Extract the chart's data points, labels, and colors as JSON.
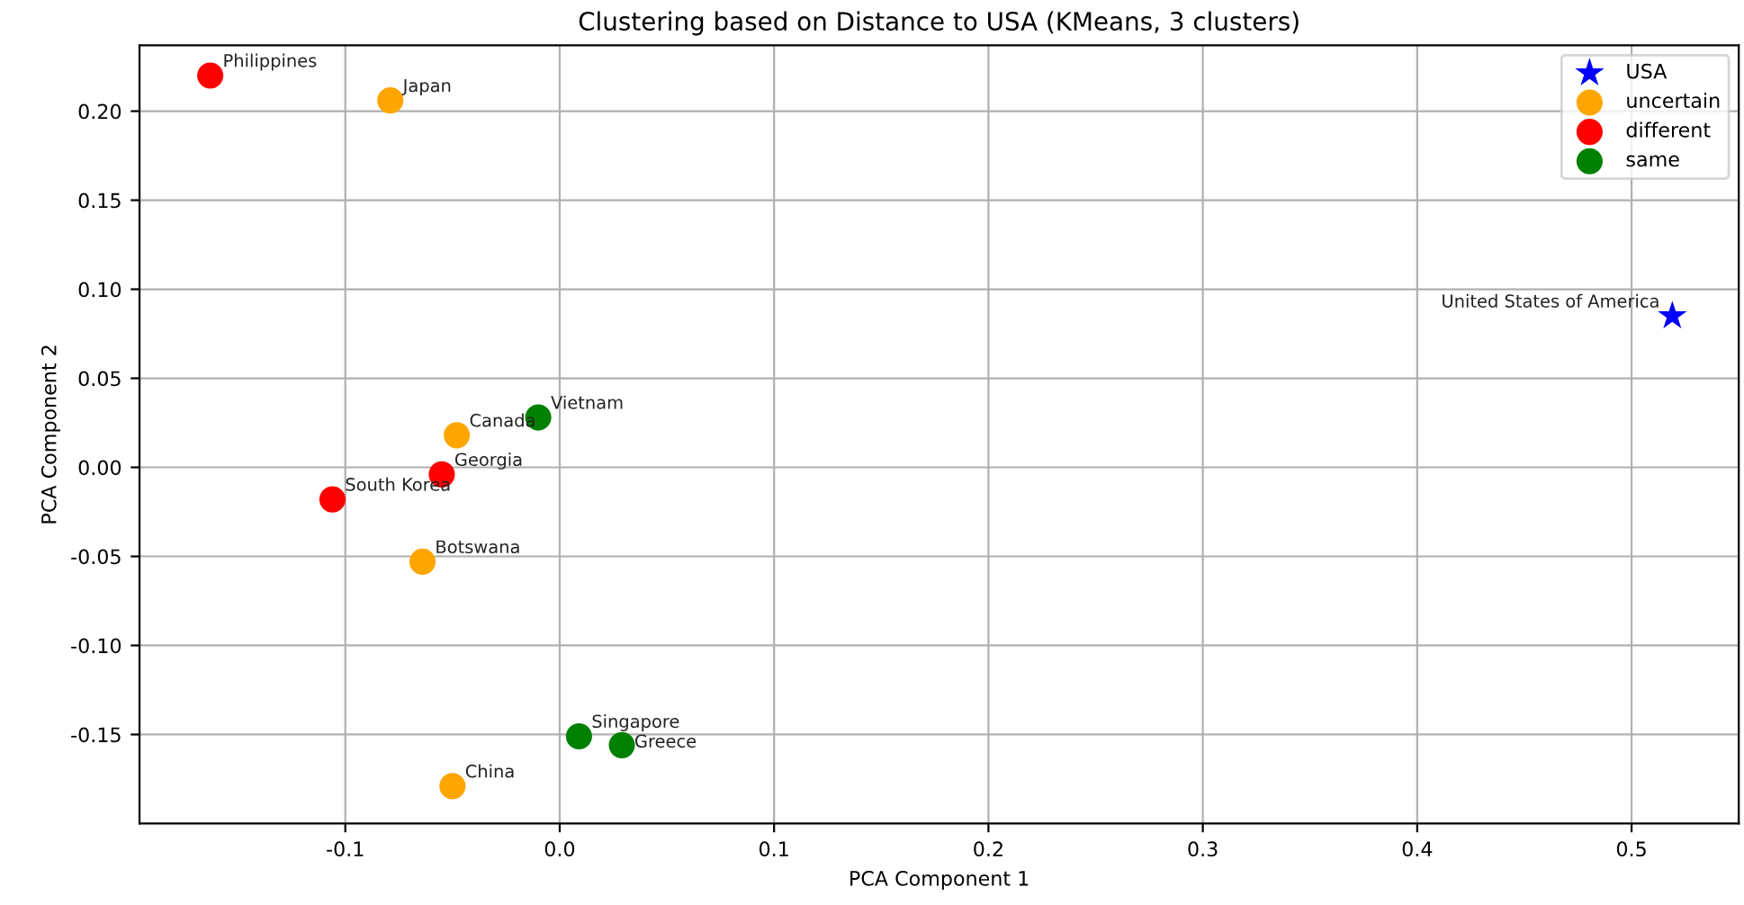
{
  "chart_data": {
    "type": "scatter",
    "title": "Clustering based on Distance to USA (KMeans, 3 clusters)",
    "xlabel": "PCA Component 1",
    "ylabel": "PCA Component 2",
    "series": [
      {
        "name": "USA",
        "color": "#0000ff",
        "marker": "star",
        "x": [
          0.519
        ],
        "values": [
          0.085
        ]
      },
      {
        "name": "uncertain",
        "color": "#ffa500",
        "marker": "circle",
        "x": [
          -0.079,
          -0.048,
          -0.064,
          -0.05
        ],
        "values": [
          0.206,
          0.018,
          -0.053,
          -0.179
        ]
      },
      {
        "name": "different",
        "color": "#ff0000",
        "marker": "circle",
        "x": [
          -0.163,
          -0.055,
          -0.106
        ],
        "values": [
          0.22,
          -0.004,
          -0.018
        ]
      },
      {
        "name": "same",
        "color": "#008000",
        "marker": "circle",
        "x": [
          -0.01,
          0.009,
          0.029
        ],
        "values": [
          0.028,
          -0.151,
          -0.156
        ]
      }
    ],
    "annotations": [
      {
        "text": "United States of America",
        "x": 0.519,
        "y": 0.085
      },
      {
        "text": "Japan",
        "x": -0.079,
        "y": 0.206
      },
      {
        "text": "Canada",
        "x": -0.048,
        "y": 0.018
      },
      {
        "text": "Botswana",
        "x": -0.064,
        "y": -0.053
      },
      {
        "text": "China",
        "x": -0.05,
        "y": -0.179
      },
      {
        "text": "Philippines",
        "x": -0.163,
        "y": 0.22
      },
      {
        "text": "Georgia",
        "x": -0.055,
        "y": -0.004
      },
      {
        "text": "South Korea",
        "x": -0.106,
        "y": -0.018
      },
      {
        "text": "Vietnam",
        "x": -0.01,
        "y": 0.028
      },
      {
        "text": "Singapore",
        "x": 0.009,
        "y": -0.151
      },
      {
        "text": "Greece",
        "x": 0.029,
        "y": -0.156
      }
    ],
    "xlim": [
      -0.196,
      0.55
    ],
    "ylim": [
      -0.2,
      0.237
    ],
    "xticks": [
      -0.1,
      {
        "value": 0,
        "label": "0.0"
      },
      0.1,
      0.2,
      0.3,
      0.4,
      0.5
    ],
    "yticks": [
      -0.15,
      {
        "value": -0.1,
        "label": "-0.10"
      },
      -0.05,
      {
        "value": 0,
        "label": "0.00"
      },
      0.05,
      {
        "value": 0.1,
        "label": "0.10"
      },
      0.15,
      {
        "value": 0.2,
        "label": "0.20"
      }
    ],
    "grid": true,
    "legend": "top right"
  }
}
